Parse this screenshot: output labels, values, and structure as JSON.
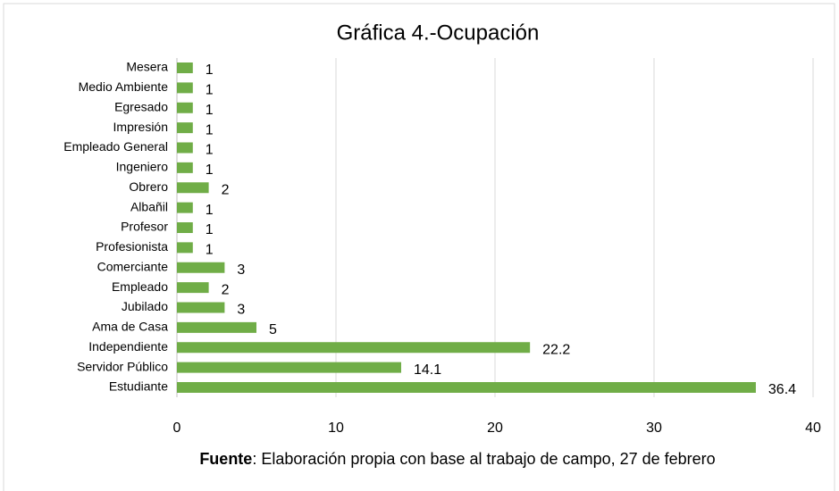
{
  "chart_data": {
    "type": "bar",
    "orientation": "horizontal",
    "title": "Gráfica 4.-Ocupación",
    "categories": [
      "Mesera",
      "Medio Ambiente",
      "Egresado",
      "Impresión",
      "Empleado General",
      "Ingeniero",
      "Obrero",
      "Albañil",
      "Profesor",
      "Profesionista",
      "Comerciante",
      "Empleado",
      "Jubilado",
      "Ama de Casa",
      "Independiente",
      "Servidor Público",
      "Estudiante"
    ],
    "values": [
      1,
      1,
      1,
      1,
      1,
      1,
      2,
      1,
      1,
      1,
      3,
      2,
      3,
      5,
      22.2,
      14.1,
      36.4
    ],
    "color": "#70ad47",
    "xlim": [
      0,
      40
    ],
    "xticks": [
      0,
      10,
      20,
      30,
      40
    ],
    "grid": true,
    "source": {
      "label": "Fuente",
      "text": ": Elaboración propia con base al trabajo de campo, 27 de febrero"
    }
  }
}
